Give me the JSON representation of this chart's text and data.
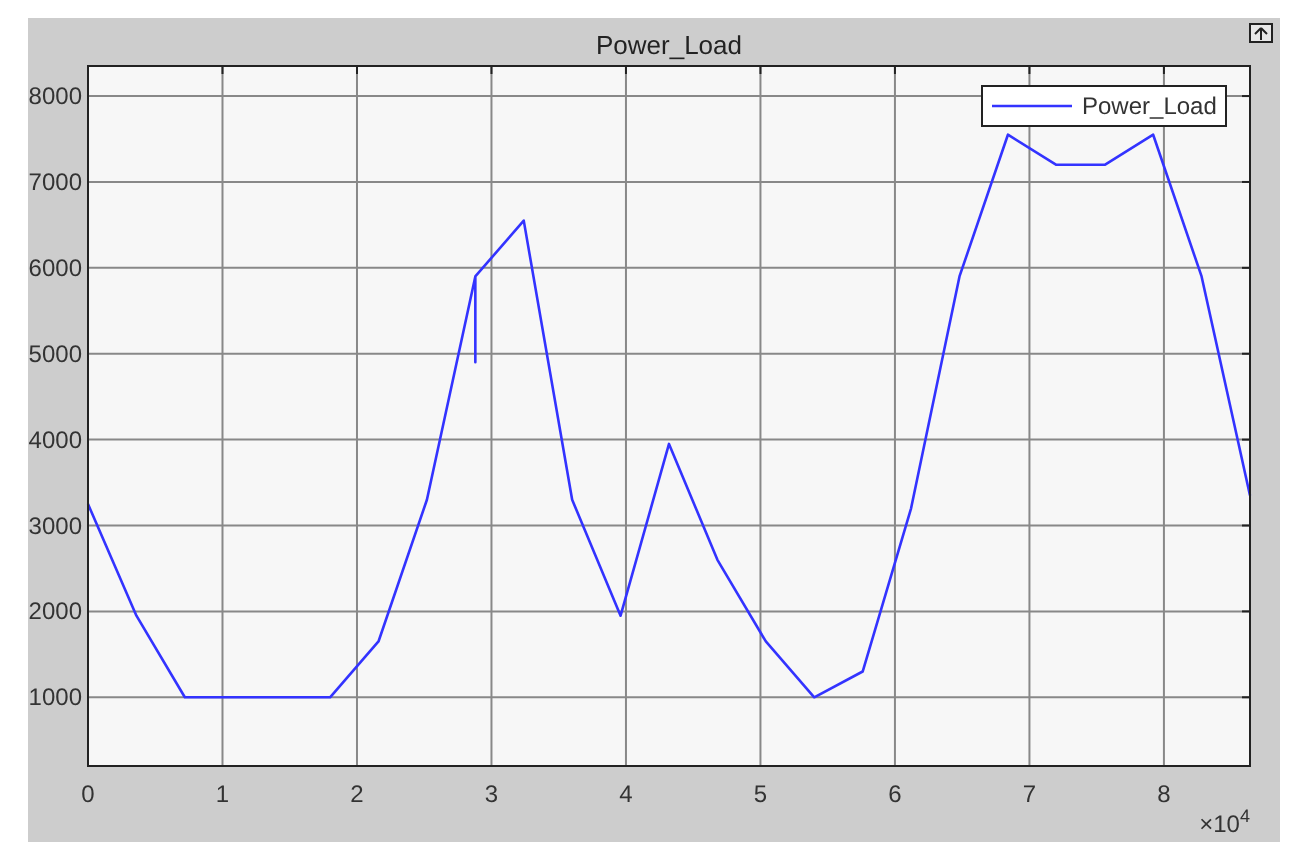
{
  "chart_data": {
    "type": "line",
    "title": "Power_Load",
    "x": [
      0,
      0.36,
      0.72,
      1.08,
      1.44,
      1.8,
      2.16,
      2.52,
      2.88,
      2.88,
      2.88,
      3.24,
      3.6,
      3.96,
      4.32,
      4.68,
      5.04,
      5.4,
      5.76,
      6.12,
      6.48,
      6.84,
      7.2,
      7.56,
      7.92,
      8.28,
      8.64
    ],
    "series": [
      {
        "name": "Power_Load",
        "color": "#3333ff",
        "values": [
          3250,
          1950,
          1000,
          1000,
          1000,
          1000,
          1650,
          3300,
          5900,
          4900,
          5900,
          6550,
          3300,
          1950,
          3950,
          2600,
          1650,
          1000,
          1300,
          3200,
          5900,
          7550,
          7200,
          7200,
          7550,
          5900,
          3350
        ]
      }
    ],
    "xlim": [
      0,
      8.64
    ],
    "xticks": [
      0,
      1,
      2,
      3,
      4,
      5,
      6,
      7,
      8
    ],
    "ylim": [
      200,
      8350
    ],
    "yticks": [
      1000,
      2000,
      3000,
      4000,
      5000,
      6000,
      7000,
      8000
    ],
    "annotations": [
      "×10$^{4}$"
    ],
    "grid": true,
    "legend": "top right",
    "marker": "none",
    "line_style": "solid"
  }
}
